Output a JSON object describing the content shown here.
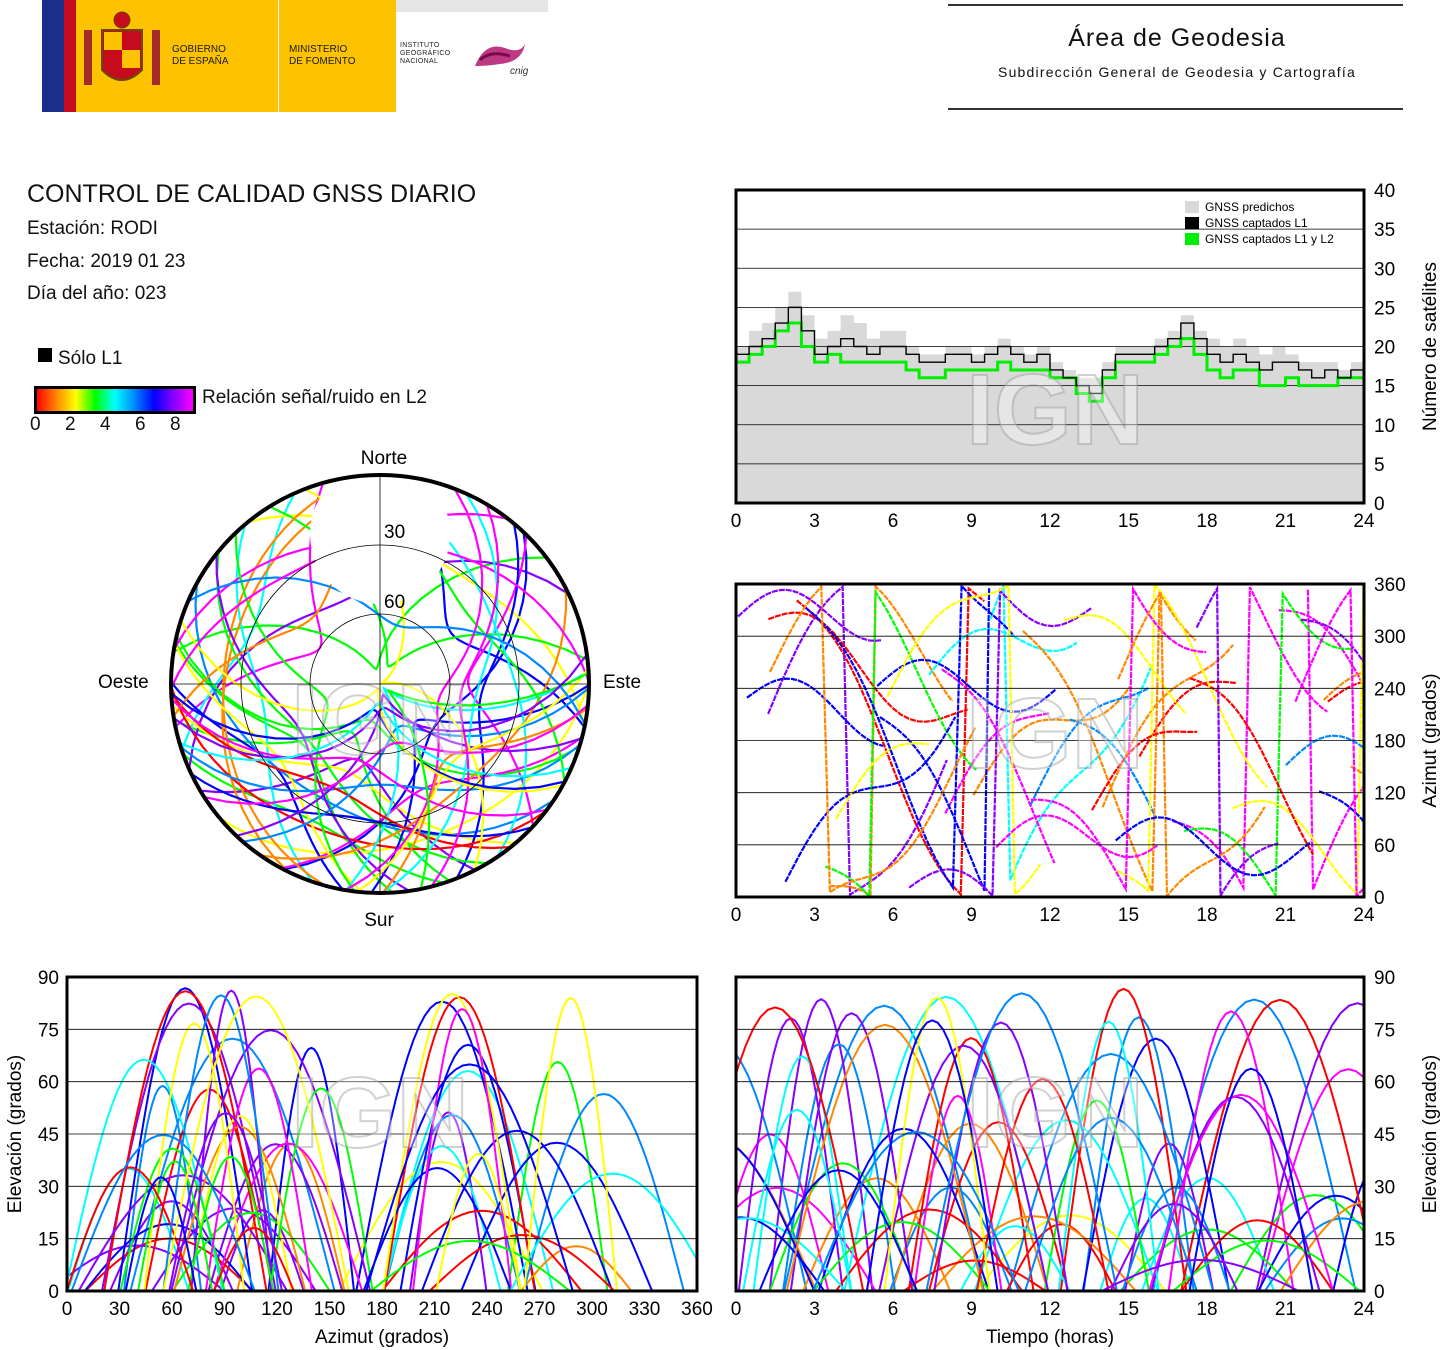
{
  "header": {
    "gov_line1": "GOBIERNO",
    "gov_line2": "DE ESPAÑA",
    "min_line1": "MINISTERIO",
    "min_line2": "DE FOMENTO",
    "ign_line1": "INSTITUTO",
    "ign_line2": "GEOGRÁFICO",
    "ign_line3": "NACIONAL",
    "cnig": "cnig",
    "area_title": "Área de Geodesia",
    "area_subtitle": "Subdirección General de Geodesia y Cartografía"
  },
  "info": {
    "title": "CONTROL DE CALIDAD GNSS DIARIO",
    "station": "Estación: RODI",
    "date": "Fecha: 2019 01 23",
    "doy": "Día del año: 023"
  },
  "legend": {
    "solo_l1": "Sólo L1",
    "snr_label": "Relación señal/ruido en L2",
    "snr_ticks": [
      "0",
      "2",
      "4",
      "6",
      "8"
    ]
  },
  "watermark": "IGN",
  "colors": {
    "predicted": "#d9d9d9",
    "l1": "#000000",
    "l1l2": "#00ee00",
    "snr_scale": [
      "#ff0000",
      "#ff8800",
      "#ffff00",
      "#00ff00",
      "#00ffff",
      "#0088ff",
      "#0000ff",
      "#8800ff",
      "#ff00ff"
    ]
  },
  "chart_data": [
    {
      "id": "satellites",
      "type": "line",
      "ylabel": "Número de satélites",
      "xticks": [
        "0",
        "3",
        "6",
        "9",
        "12",
        "15",
        "18",
        "21",
        "24"
      ],
      "yticks": [
        "0",
        "5",
        "10",
        "15",
        "20",
        "25",
        "30",
        "35",
        "40"
      ],
      "xlim": [
        0,
        24
      ],
      "ylim": [
        0,
        40
      ],
      "legend": [
        "GNSS predichos",
        "GNSS captados L1",
        "GNSS captados L1 y L2"
      ],
      "x": [
        0,
        0.5,
        1,
        1.5,
        2,
        2.5,
        3,
        3.5,
        4,
        4.5,
        5,
        5.5,
        6,
        6.5,
        7,
        7.5,
        8,
        8.5,
        9,
        9.5,
        10,
        10.5,
        11,
        11.5,
        12,
        12.5,
        13,
        13.5,
        14,
        14.5,
        15,
        15.5,
        16,
        16.5,
        17,
        17.5,
        18,
        18.5,
        19,
        19.5,
        20,
        20.5,
        21,
        21.5,
        22,
        22.5,
        23,
        23.5,
        24
      ],
      "series": [
        {
          "name": "GNSS predichos",
          "values": [
            20,
            22,
            23,
            25,
            27,
            24,
            21,
            22,
            24,
            23,
            21,
            22,
            22,
            20,
            19,
            19,
            20,
            20,
            19,
            20,
            21,
            20,
            19,
            20,
            18,
            17,
            16,
            16,
            18,
            20,
            20,
            20,
            21,
            22,
            24,
            22,
            21,
            20,
            21,
            20,
            19,
            20,
            19,
            18,
            18,
            18,
            17,
            18,
            19
          ]
        },
        {
          "name": "GNSS captados L1",
          "values": [
            19,
            20,
            21,
            23,
            25,
            22,
            19,
            20,
            21,
            20,
            19,
            20,
            20,
            19,
            18,
            18,
            19,
            19,
            18,
            19,
            20,
            19,
            18,
            19,
            17,
            16,
            15,
            14,
            17,
            19,
            19,
            19,
            20,
            21,
            23,
            21,
            19,
            18,
            19,
            18,
            17,
            18,
            18,
            17,
            16,
            17,
            16,
            17,
            18
          ]
        },
        {
          "name": "GNSS captados L1 y L2",
          "values": [
            18,
            19,
            20,
            22,
            23,
            20,
            18,
            19,
            18,
            18,
            18,
            18,
            18,
            17,
            16,
            16,
            17,
            17,
            17,
            17,
            18,
            17,
            17,
            17,
            16,
            16,
            14,
            13,
            16,
            18,
            18,
            18,
            19,
            20,
            21,
            19,
            17,
            16,
            17,
            17,
            15,
            15,
            16,
            15,
            15,
            15,
            16,
            16,
            17
          ]
        }
      ]
    },
    {
      "id": "azimuth_time",
      "type": "scatter",
      "xlabel": "",
      "ylabel": "Azimut (grados)",
      "xticks": [
        "0",
        "3",
        "6",
        "9",
        "12",
        "15",
        "18",
        "21",
        "24"
      ],
      "yticks": [
        "0",
        "60",
        "120",
        "180",
        "240",
        "300",
        "360"
      ],
      "xlim": [
        0,
        24
      ],
      "ylim": [
        0,
        360
      ]
    },
    {
      "id": "elevation_azimuth",
      "type": "scatter",
      "xlabel": "Azimut (grados)",
      "ylabel": "Elevación (grados)",
      "xticks": [
        "0",
        "30",
        "60",
        "90",
        "120",
        "150",
        "180",
        "210",
        "240",
        "270",
        "300",
        "330",
        "360"
      ],
      "yticks": [
        "0",
        "15",
        "30",
        "45",
        "60",
        "75",
        "90"
      ],
      "xlim": [
        0,
        360
      ],
      "ylim": [
        0,
        90
      ]
    },
    {
      "id": "elevation_time",
      "type": "scatter",
      "xlabel": "Tiempo (horas)",
      "ylabel": "Elevación (grados)",
      "xticks": [
        "0",
        "3",
        "6",
        "9",
        "12",
        "15",
        "18",
        "21",
        "24"
      ],
      "yticks": [
        "0",
        "15",
        "30",
        "45",
        "60",
        "75",
        "90"
      ],
      "xlim": [
        0,
        24
      ],
      "ylim": [
        0,
        90
      ]
    },
    {
      "id": "skyplot",
      "type": "scatter",
      "directions": [
        "Norte",
        "Sur",
        "Este",
        "Oeste"
      ],
      "ring_labels": [
        "30",
        "60"
      ]
    }
  ]
}
